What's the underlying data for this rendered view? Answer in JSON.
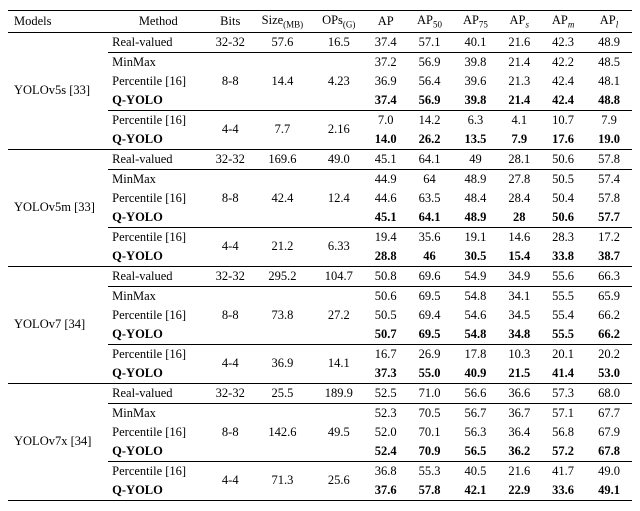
{
  "columns": {
    "models": "Models",
    "method": "Method",
    "bits": "Bits",
    "size": "Size",
    "size_sub": "(MB)",
    "ops": "OPs",
    "ops_sub": "(G)",
    "ap": "AP",
    "ap50": "AP",
    "ap50_sub": "50",
    "ap75": "AP",
    "ap75_sub": "75",
    "aps": "AP",
    "aps_sub": "s",
    "apm": "AP",
    "apm_sub": "m",
    "apl": "AP",
    "apl_sub": "l"
  },
  "groups": [
    {
      "model": "YOLOv5s [33]",
      "rows": [
        {
          "method": "Real-valued",
          "bits": "32-32",
          "size": "57.6",
          "ops": "16.5",
          "ap": "37.4",
          "ap50": "57.1",
          "ap75": "40.1",
          "aps": "21.6",
          "apm": "42.3",
          "apl": "48.9",
          "bold": false,
          "topline": false
        },
        {
          "method": "MinMax",
          "bits": "",
          "size": "",
          "ops": "",
          "ap": "37.2",
          "ap50": "56.9",
          "ap75": "39.8",
          "aps": "21.4",
          "apm": "42.2",
          "apl": "48.5",
          "bold": false,
          "topline": true
        },
        {
          "method": "Percentile [16]",
          "bits": "8-8",
          "size": "14.4",
          "ops": "4.23",
          "ap": "36.9",
          "ap50": "56.4",
          "ap75": "39.6",
          "aps": "21.3",
          "apm": "42.4",
          "apl": "48.1",
          "bold": false,
          "topline": false
        },
        {
          "method": "Q-YOLO",
          "bits": "",
          "size": "",
          "ops": "",
          "ap": "37.4",
          "ap50": "56.9",
          "ap75": "39.8",
          "aps": "21.4",
          "apm": "42.4",
          "apl": "48.8",
          "bold": true,
          "topline": false
        },
        {
          "method": "Percentile [16]",
          "bits": "4-4",
          "size": "7.7",
          "ops": "2.16",
          "ap": "7.0",
          "ap50": "14.2",
          "ap75": "6.3",
          "aps": "4.1",
          "apm": "10.7",
          "apl": "7.9",
          "bold": false,
          "topline": true
        },
        {
          "method": "Q-YOLO",
          "bits": "",
          "size": "",
          "ops": "",
          "ap": "14.0",
          "ap50": "26.2",
          "ap75": "13.5",
          "aps": "7.9",
          "apm": "17.6",
          "apl": "19.0",
          "bold": true,
          "topline": false
        }
      ]
    },
    {
      "model": "YOLOv5m [33]",
      "rows": [
        {
          "method": "Real-valued",
          "bits": "32-32",
          "size": "169.6",
          "ops": "49.0",
          "ap": "45.1",
          "ap50": "64.1",
          "ap75": "49",
          "aps": "28.1",
          "apm": "50.6",
          "apl": "57.8",
          "bold": false,
          "topline": false
        },
        {
          "method": "MinMax",
          "bits": "",
          "size": "",
          "ops": "",
          "ap": "44.9",
          "ap50": "64",
          "ap75": "48.9",
          "aps": "27.8",
          "apm": "50.5",
          "apl": "57.4",
          "bold": false,
          "topline": true
        },
        {
          "method": "Percentile [16]",
          "bits": "8-8",
          "size": "42.4",
          "ops": "12.4",
          "ap": "44.6",
          "ap50": "63.5",
          "ap75": "48.4",
          "aps": "28.4",
          "apm": "50.4",
          "apl": "57.8",
          "bold": false,
          "topline": false
        },
        {
          "method": "Q-YOLO",
          "bits": "",
          "size": "",
          "ops": "",
          "ap": "45.1",
          "ap50": "64.1",
          "ap75": "48.9",
          "aps": "28",
          "apm": "50.6",
          "apl": "57.7",
          "bold": true,
          "topline": false
        },
        {
          "method": "Percentile [16]",
          "bits": "4-4",
          "size": "21.2",
          "ops": "6.33",
          "ap": "19.4",
          "ap50": "35.6",
          "ap75": "19.1",
          "aps": "14.6",
          "apm": "28.3",
          "apl": "17.2",
          "bold": false,
          "topline": true
        },
        {
          "method": "Q-YOLO",
          "bits": "",
          "size": "",
          "ops": "",
          "ap": "28.8",
          "ap50": "46",
          "ap75": "30.5",
          "aps": "15.4",
          "apm": "33.8",
          "apl": "38.7",
          "bold": true,
          "topline": false
        }
      ]
    },
    {
      "model": "YOLOv7 [34]",
      "rows": [
        {
          "method": "Real-valued",
          "bits": "32-32",
          "size": "295.2",
          "ops": "104.7",
          "ap": "50.8",
          "ap50": "69.6",
          "ap75": "54.9",
          "aps": "34.9",
          "apm": "55.6",
          "apl": "66.3",
          "bold": false,
          "topline": false
        },
        {
          "method": "MinMax",
          "bits": "",
          "size": "",
          "ops": "",
          "ap": "50.6",
          "ap50": "69.5",
          "ap75": "54.8",
          "aps": "34.1",
          "apm": "55.5",
          "apl": "65.9",
          "bold": false,
          "topline": true
        },
        {
          "method": "Percentile [16]",
          "bits": "8-8",
          "size": "73.8",
          "ops": "27.2",
          "ap": "50.5",
          "ap50": "69.4",
          "ap75": "54.6",
          "aps": "34.5",
          "apm": "55.4",
          "apl": "66.2",
          "bold": false,
          "topline": false
        },
        {
          "method": "Q-YOLO",
          "bits": "",
          "size": "",
          "ops": "",
          "ap": "50.7",
          "ap50": "69.5",
          "ap75": "54.8",
          "aps": "34.8",
          "apm": "55.5",
          "apl": "66.2",
          "bold": true,
          "topline": false
        },
        {
          "method": "Percentile [16]",
          "bits": "4-4",
          "size": "36.9",
          "ops": "14.1",
          "ap": "16.7",
          "ap50": "26.9",
          "ap75": "17.8",
          "aps": "10.3",
          "apm": "20.1",
          "apl": "20.2",
          "bold": false,
          "topline": true
        },
        {
          "method": "Q-YOLO",
          "bits": "",
          "size": "",
          "ops": "",
          "ap": "37.3",
          "ap50": "55.0",
          "ap75": "40.9",
          "aps": "21.5",
          "apm": "41.4",
          "apl": "53.0",
          "bold": true,
          "topline": false
        }
      ]
    },
    {
      "model": "YOLOv7x [34]",
      "rows": [
        {
          "method": "Real-valued",
          "bits": "32-32",
          "size": "25.5",
          "ops": "189.9",
          "ap": "52.5",
          "ap50": "71.0",
          "ap75": "56.6",
          "aps": "36.6",
          "apm": "57.3",
          "apl": "68.0",
          "bold": false,
          "topline": false
        },
        {
          "method": "MinMax",
          "bits": "",
          "size": "",
          "ops": "",
          "ap": "52.3",
          "ap50": "70.5",
          "ap75": "56.7",
          "aps": "36.7",
          "apm": "57.1",
          "apl": "67.7",
          "bold": false,
          "topline": true
        },
        {
          "method": "Percentile [16]",
          "bits": "8-8",
          "size": "142.6",
          "ops": "49.5",
          "ap": "52.0",
          "ap50": "70.1",
          "ap75": "56.3",
          "aps": "36.4",
          "apm": "56.8",
          "apl": "67.9",
          "bold": false,
          "topline": false
        },
        {
          "method": "Q-YOLO",
          "bits": "",
          "size": "",
          "ops": "",
          "ap": "52.4",
          "ap50": "70.9",
          "ap75": "56.5",
          "aps": "36.2",
          "apm": "57.2",
          "apl": "67.8",
          "bold": true,
          "topline": false
        },
        {
          "method": "Percentile [16]",
          "bits": "4-4",
          "size": "71.3",
          "ops": "25.6",
          "ap": "36.8",
          "ap50": "55.3",
          "ap75": "40.5",
          "aps": "21.6",
          "apm": "41.7",
          "apl": "49.0",
          "bold": false,
          "topline": true
        },
        {
          "method": "Q-YOLO",
          "bits": "",
          "size": "",
          "ops": "",
          "ap": "37.6",
          "ap50": "57.8",
          "ap75": "42.1",
          "aps": "22.9",
          "apm": "33.6",
          "apl": "49.1",
          "bold": true,
          "topline": false
        }
      ]
    }
  ],
  "col_widths": {
    "models": "96px",
    "method": "96px",
    "bits": "42px",
    "size": "58px",
    "ops": "50px",
    "ap": "40px",
    "ap50": "44px",
    "ap75": "44px",
    "aps": "40px",
    "apm": "44px",
    "apl": "44px"
  }
}
